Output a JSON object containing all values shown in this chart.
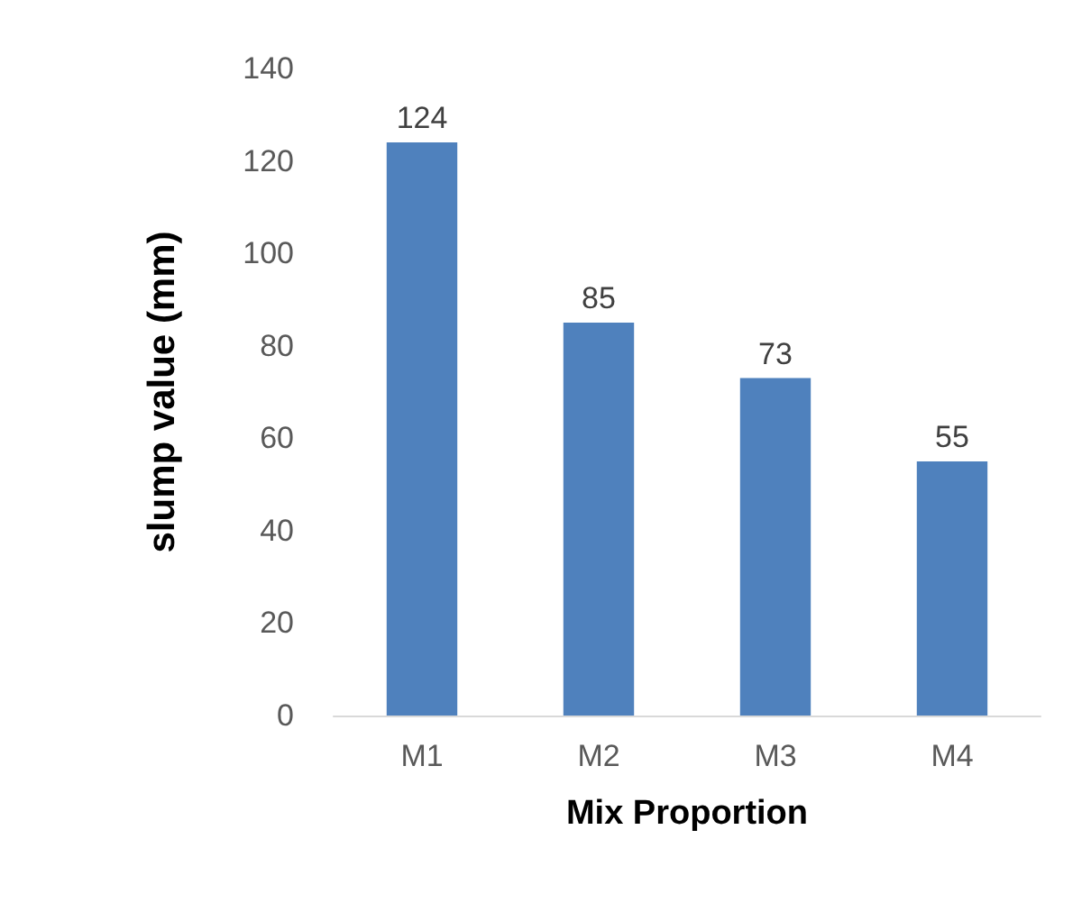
{
  "chart_data": {
    "type": "bar",
    "xlabel": "Mix Proportion",
    "ylabel": "slump value (mm)",
    "categories": [
      "M1",
      "M2",
      "M3",
      "M4"
    ],
    "values": [
      124,
      85,
      73,
      55
    ],
    "color": "#4f81bd",
    "ylim": [
      0,
      140
    ],
    "yticks": [
      0,
      20,
      40,
      60,
      80,
      100,
      120,
      140
    ],
    "grid": false,
    "data_labels": true
  }
}
